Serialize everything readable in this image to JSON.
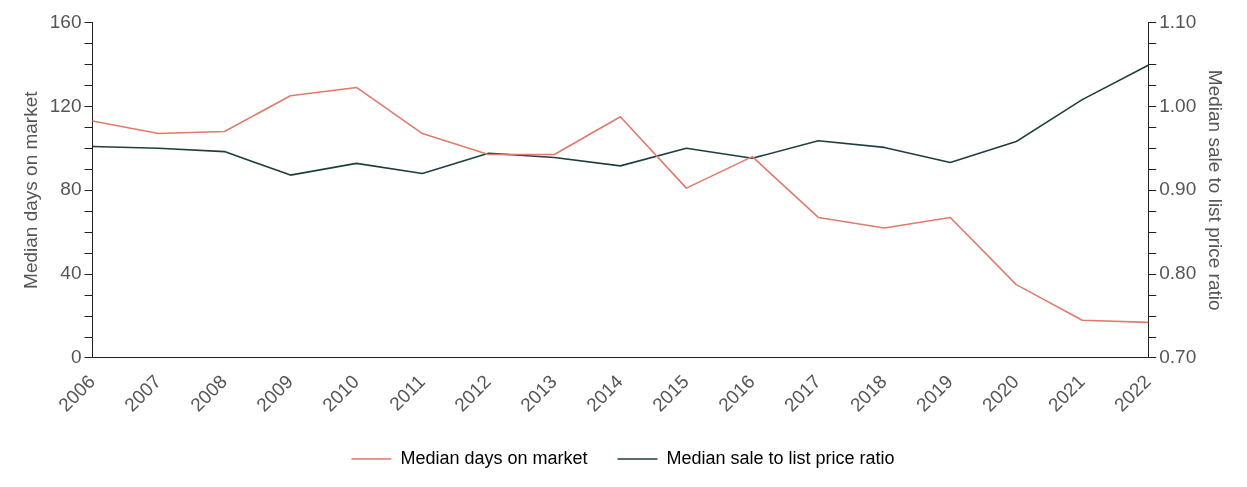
{
  "chart_data": {
    "type": "line",
    "categories": [
      "2006",
      "2007",
      "2008",
      "2009",
      "2010",
      "2011",
      "2012",
      "2013",
      "2014",
      "2015",
      "2016",
      "2017",
      "2018",
      "2019",
      "2020",
      "2021",
      "2022"
    ],
    "ylabel": "Median days on market",
    "y2label": "Median sale to list price ratio",
    "ylim": [
      0,
      160
    ],
    "yticks": [
      0,
      {
        "value": 10,
        "label": null
      },
      {
        "value": 20,
        "label": null
      },
      {
        "value": 30,
        "label": null
      },
      40,
      {
        "value": 50,
        "label": null
      },
      {
        "value": 60,
        "label": null
      },
      {
        "value": 70,
        "label": null
      },
      80,
      {
        "value": 90,
        "label": null
      },
      {
        "value": 100,
        "label": null
      },
      {
        "value": 110,
        "label": null
      },
      120,
      {
        "value": 130,
        "label": null
      },
      {
        "value": 140,
        "label": null
      },
      {
        "value": 150,
        "label": null
      },
      160
    ],
    "y2lim": [
      0.7,
      1.1
    ],
    "y2ticks": [
      {
        "value": 0.7,
        "label": "0.70"
      },
      {
        "value": 0.725,
        "label": null
      },
      {
        "value": 0.75,
        "label": null
      },
      {
        "value": 0.775,
        "label": null
      },
      {
        "value": 0.8,
        "label": "0.80"
      },
      {
        "value": 0.825,
        "label": null
      },
      {
        "value": 0.85,
        "label": null
      },
      {
        "value": 0.875,
        "label": null
      },
      {
        "value": 0.9,
        "label": "0.90"
      },
      {
        "value": 0.925,
        "label": null
      },
      {
        "value": 0.95,
        "label": null
      },
      {
        "value": 0.975,
        "label": null
      },
      {
        "value": 1.0,
        "label": "1.00"
      },
      {
        "value": 1.025,
        "label": null
      },
      {
        "value": 1.05,
        "label": null
      },
      {
        "value": 1.075,
        "label": null
      },
      {
        "value": 1.1,
        "label": "1.10"
      }
    ],
    "series": [
      {
        "name": "Median days on market",
        "color": "#e07b6a",
        "values": [
          113,
          107,
          108,
          125,
          129,
          107,
          97,
          97,
          115,
          81,
          96,
          67,
          62,
          67,
          35,
          18,
          17
        ]
      },
      {
        "name": "Median sale to list price ratio",
        "color": "#1f3f3f",
        "axis": "y2",
        "values": [
          0.952,
          0.95,
          0.946,
          0.918,
          0.932,
          0.92,
          0.944,
          0.939,
          0.929,
          0.95,
          0.938,
          0.959,
          0.951,
          0.933,
          0.958,
          1.008,
          1.049
        ]
      }
    ],
    "grid": false,
    "legend": "bottom",
    "marker": "none",
    "line_style": "solid"
  }
}
